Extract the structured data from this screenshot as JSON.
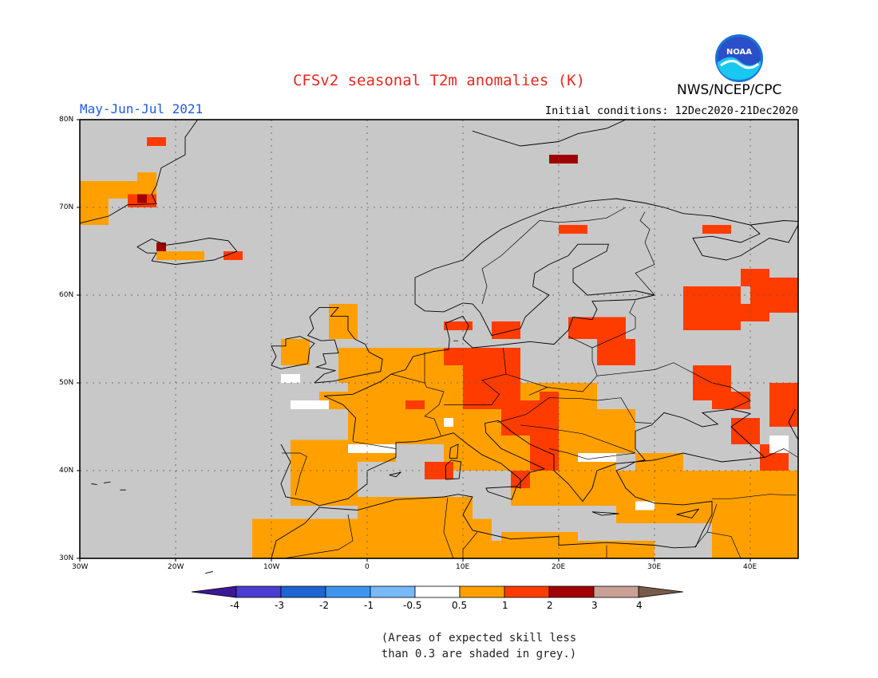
{
  "title": "CFSv2 seasonal T2m anomalies (K)",
  "period": "May-Jun-Jul 2021",
  "initial_conditions": "Initial conditions: 12Dec2020-21Dec2020",
  "agency": "NWS/NCEP/CPC",
  "logo_text": "NOAA",
  "note_line1": "(Areas of expected skill less",
  "note_line2": "than 0.3 are shaded in grey.)",
  "axes": {
    "lat_labels": [
      "80N",
      "70N",
      "60N",
      "50N",
      "40N",
      "30N"
    ],
    "lon_labels": [
      "30W",
      "20W",
      "10W",
      "0",
      "10E",
      "20E",
      "30E",
      "40E"
    ]
  },
  "colorbar": {
    "labels": [
      "-4",
      "-3",
      "-2",
      "-1",
      "-0.5",
      "0.5",
      "1",
      "2",
      "3",
      "4"
    ],
    "colors": [
      "#3c1896",
      "#4a3ed2",
      "#1e64d2",
      "#3c96f0",
      "#78b9fa",
      "#ffffff",
      "#ffa000",
      "#ff3c00",
      "#a00000",
      "#c8a096",
      "#785a4b"
    ]
  },
  "colors": {
    "ocean_grey": "#c8c8c8",
    "title_red": "#e8281e",
    "period_blue": "#1e5ae6",
    "anom_0_5_1": "#ffa000",
    "anom_1_2": "#ff3c00",
    "anom_2_3": "#a00000",
    "neutral": "#ffffff"
  }
}
